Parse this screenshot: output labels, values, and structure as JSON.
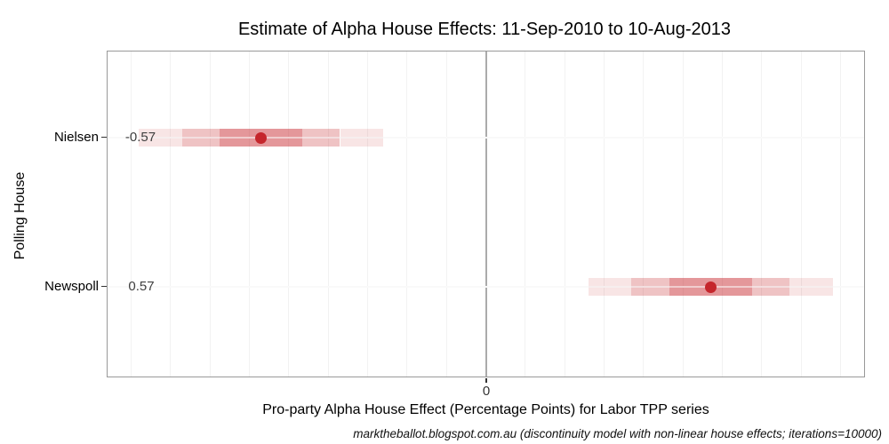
{
  "chart_data": {
    "type": "interval",
    "title": "Estimate of Alpha House Effects: 11-Sep-2010 to 10-Aug-2013",
    "xlabel": "Pro-party Alpha House Effect (Percentage Points) for Labor TPP series",
    "ylabel": "Polling House",
    "caption": "marktheballot.blogspot.com.au (discontinuity model with non-linear house effects; iterations=10000)",
    "categories": [
      "Nielsen",
      "Newspoll"
    ],
    "xlim": [
      -0.96,
      0.96
    ],
    "x_ticks": [
      {
        "value": 0,
        "label": "0"
      }
    ],
    "gridline_step": 0.1,
    "gridline_range": [
      -0.9,
      0.9
    ],
    "grid_on": true,
    "legend": "none",
    "series": [
      {
        "house": "Nielsen",
        "estimate": -0.57,
        "estimate_label": "-0.57",
        "bands": [
          {
            "level": "outer",
            "lo": -0.88,
            "hi": -0.26
          },
          {
            "level": "middle",
            "lo": -0.77,
            "hi": -0.37
          },
          {
            "level": "inner",
            "lo": -0.675,
            "hi": -0.465
          }
        ]
      },
      {
        "house": "Newspoll",
        "estimate": 0.57,
        "estimate_label": "0.57",
        "bands": [
          {
            "level": "outer",
            "lo": 0.26,
            "hi": 0.88
          },
          {
            "level": "middle",
            "lo": 0.37,
            "hi": 0.77
          },
          {
            "level": "inner",
            "lo": 0.465,
            "hi": 0.675
          }
        ]
      }
    ],
    "colors": {
      "point": "#c5262c",
      "band_rgb": "198,38,44",
      "band_alpha": {
        "outer": 0.12,
        "middle": 0.28,
        "inner": 0.48
      },
      "gridline": "#f2f2f2",
      "zero_line": "#ababab",
      "plot_border": "#999999",
      "tick_mark": "#333333",
      "text": "#000000"
    }
  }
}
